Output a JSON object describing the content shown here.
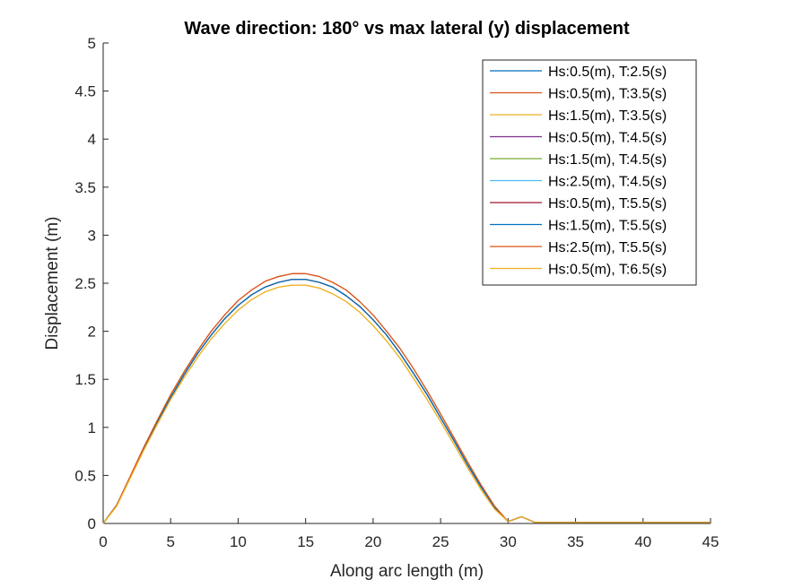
{
  "chart_data": {
    "type": "line",
    "title": "Wave direction: 180° vs max lateral (y) displacement",
    "xlabel": "Along arc length (m)",
    "ylabel": "Displacement (m)",
    "xlim": [
      0,
      45
    ],
    "ylim": [
      0,
      5
    ],
    "xticks": [
      0,
      5,
      10,
      15,
      20,
      25,
      30,
      35,
      40,
      45
    ],
    "xtick_labels": [
      "0",
      "5",
      "10",
      "15",
      "20",
      "25",
      "30",
      "35",
      "40",
      "45"
    ],
    "yticks": [
      0,
      0.5,
      1,
      1.5,
      2,
      2.5,
      3,
      3.5,
      4,
      4.5,
      5
    ],
    "ytick_labels": [
      "0",
      "0.5",
      "1",
      "1.5",
      "2",
      "2.5",
      "3",
      "3.5",
      "4",
      "4.5",
      "5"
    ],
    "grid": false,
    "legend_position": "top-right",
    "x": [
      0,
      1,
      2,
      3,
      4,
      5,
      6,
      7,
      8,
      9,
      10,
      11,
      12,
      13,
      14,
      15,
      16,
      17,
      18,
      19,
      20,
      21,
      22,
      23,
      24,
      25,
      26,
      27,
      28,
      29,
      30,
      31,
      32,
      33,
      34,
      35,
      36,
      37,
      38,
      39,
      40,
      41,
      42,
      43,
      44,
      45
    ],
    "series": [
      {
        "name": "Hs:0.5(m), T:2.5(s)",
        "color": "#0072BD",
        "values": [
          0,
          0.19,
          0.48,
          0.77,
          1.05,
          1.31,
          1.55,
          1.77,
          1.96,
          2.13,
          2.27,
          2.38,
          2.46,
          2.51,
          2.54,
          2.54,
          2.51,
          2.46,
          2.37,
          2.26,
          2.12,
          1.96,
          1.77,
          1.56,
          1.34,
          1.1,
          0.86,
          0.61,
          0.38,
          0.17,
          0.02,
          0.07,
          0.01,
          0.01,
          0.01,
          0.01,
          0.01,
          0.01,
          0.01,
          0.01,
          0.01,
          0.01,
          0.01,
          0.01,
          0.01,
          0.01
        ]
      },
      {
        "name": "Hs:0.5(m), T:3.5(s)",
        "color": "#D95319",
        "values": [
          0,
          0.19,
          0.49,
          0.79,
          1.07,
          1.34,
          1.58,
          1.8,
          2,
          2.17,
          2.32,
          2.43,
          2.52,
          2.57,
          2.6,
          2.6,
          2.57,
          2.51,
          2.43,
          2.31,
          2.17,
          2,
          1.82,
          1.61,
          1.38,
          1.14,
          0.89,
          0.64,
          0.4,
          0.18,
          0.02,
          0.07,
          0.01,
          0.01,
          0.01,
          0.01,
          0.01,
          0.01,
          0.01,
          0.01,
          0.01,
          0.01,
          0.01,
          0.01,
          0.01,
          0.01
        ]
      },
      {
        "name": "Hs:1.5(m), T:3.5(s)",
        "color": "#EDB120",
        "values": [
          0,
          0.18,
          0.47,
          0.76,
          1.03,
          1.29,
          1.52,
          1.73,
          1.92,
          2.08,
          2.22,
          2.33,
          2.41,
          2.46,
          2.48,
          2.48,
          2.45,
          2.39,
          2.31,
          2.2,
          2.06,
          1.9,
          1.72,
          1.51,
          1.29,
          1.06,
          0.82,
          0.58,
          0.35,
          0.15,
          0.02,
          0.07,
          0.01,
          0.01,
          0.01,
          0.01,
          0.01,
          0.01,
          0.01,
          0.01,
          0.01,
          0.01,
          0.01,
          0.01,
          0.01,
          0.01
        ]
      },
      {
        "name": "Hs:0.5(m), T:4.5(s)",
        "color": "#7E2F8E",
        "values": [
          0,
          0.19,
          0.48,
          0.77,
          1.05,
          1.31,
          1.55,
          1.77,
          1.96,
          2.13,
          2.27,
          2.38,
          2.46,
          2.51,
          2.54,
          2.54,
          2.51,
          2.46,
          2.37,
          2.26,
          2.12,
          1.96,
          1.77,
          1.56,
          1.34,
          1.1,
          0.86,
          0.61,
          0.38,
          0.17,
          0.02,
          0.07,
          0.01,
          0.01,
          0.01,
          0.01,
          0.01,
          0.01,
          0.01,
          0.01,
          0.01,
          0.01,
          0.01,
          0.01,
          0.01,
          0.01
        ]
      },
      {
        "name": "Hs:1.5(m), T:4.5(s)",
        "color": "#77AC30",
        "values": [
          0,
          0.19,
          0.48,
          0.77,
          1.05,
          1.31,
          1.55,
          1.77,
          1.96,
          2.13,
          2.27,
          2.38,
          2.46,
          2.51,
          2.54,
          2.54,
          2.51,
          2.46,
          2.37,
          2.26,
          2.12,
          1.96,
          1.77,
          1.56,
          1.34,
          1.1,
          0.86,
          0.61,
          0.38,
          0.17,
          0.02,
          0.07,
          0.01,
          0.01,
          0.01,
          0.01,
          0.01,
          0.01,
          0.01,
          0.01,
          0.01,
          0.01,
          0.01,
          0.01,
          0.01,
          0.01
        ]
      },
      {
        "name": "Hs:2.5(m), T:4.5(s)",
        "color": "#4DBEEE",
        "values": [
          0,
          0.19,
          0.48,
          0.77,
          1.05,
          1.31,
          1.55,
          1.77,
          1.96,
          2.13,
          2.27,
          2.38,
          2.46,
          2.51,
          2.54,
          2.54,
          2.51,
          2.46,
          2.37,
          2.26,
          2.12,
          1.96,
          1.77,
          1.56,
          1.34,
          1.1,
          0.86,
          0.61,
          0.38,
          0.17,
          0.02,
          0.07,
          0.01,
          0.01,
          0.01,
          0.01,
          0.01,
          0.01,
          0.01,
          0.01,
          0.01,
          0.01,
          0.01,
          0.01,
          0.01,
          0.01
        ]
      },
      {
        "name": "Hs:0.5(m), T:5.5(s)",
        "color": "#A2142F",
        "values": [
          0,
          0.19,
          0.48,
          0.77,
          1.05,
          1.31,
          1.55,
          1.77,
          1.96,
          2.13,
          2.27,
          2.38,
          2.46,
          2.51,
          2.54,
          2.54,
          2.51,
          2.46,
          2.37,
          2.26,
          2.12,
          1.96,
          1.77,
          1.56,
          1.34,
          1.1,
          0.86,
          0.61,
          0.38,
          0.17,
          0.02,
          0.07,
          0.01,
          0.01,
          0.01,
          0.01,
          0.01,
          0.01,
          0.01,
          0.01,
          0.01,
          0.01,
          0.01,
          0.01,
          0.01,
          0.01
        ]
      },
      {
        "name": "Hs:1.5(m), T:5.5(s)",
        "color": "#0072BD",
        "values": [
          0,
          0.19,
          0.48,
          0.77,
          1.05,
          1.31,
          1.55,
          1.77,
          1.96,
          2.13,
          2.27,
          2.38,
          2.46,
          2.51,
          2.54,
          2.54,
          2.51,
          2.46,
          2.37,
          2.26,
          2.12,
          1.96,
          1.77,
          1.56,
          1.34,
          1.1,
          0.86,
          0.61,
          0.38,
          0.17,
          0.02,
          0.07,
          0.01,
          0.01,
          0.01,
          0.01,
          0.01,
          0.01,
          0.01,
          0.01,
          0.01,
          0.01,
          0.01,
          0.01,
          0.01,
          0.01
        ]
      },
      {
        "name": "Hs:2.5(m), T:5.5(s)",
        "color": "#D95319",
        "values": [
          0,
          0.19,
          0.49,
          0.79,
          1.07,
          1.34,
          1.58,
          1.8,
          2,
          2.17,
          2.32,
          2.43,
          2.52,
          2.57,
          2.6,
          2.6,
          2.57,
          2.51,
          2.43,
          2.31,
          2.17,
          2,
          1.82,
          1.61,
          1.38,
          1.14,
          0.89,
          0.64,
          0.4,
          0.18,
          0.02,
          0.07,
          0.01,
          0.01,
          0.01,
          0.01,
          0.01,
          0.01,
          0.01,
          0.01,
          0.01,
          0.01,
          0.01,
          0.01,
          0.01,
          0.01
        ]
      },
      {
        "name": "Hs:0.5(m), T:6.5(s)",
        "color": "#EDB120",
        "values": [
          0,
          0.18,
          0.47,
          0.76,
          1.03,
          1.29,
          1.52,
          1.73,
          1.92,
          2.08,
          2.22,
          2.33,
          2.41,
          2.46,
          2.48,
          2.48,
          2.45,
          2.39,
          2.31,
          2.2,
          2.06,
          1.9,
          1.72,
          1.51,
          1.29,
          1.06,
          0.82,
          0.58,
          0.35,
          0.15,
          0.02,
          0.07,
          0.01,
          0.01,
          0.01,
          0.01,
          0.01,
          0.01,
          0.01,
          0.01,
          0.01,
          0.01,
          0.01,
          0.01,
          0.01,
          0.01
        ]
      }
    ]
  }
}
